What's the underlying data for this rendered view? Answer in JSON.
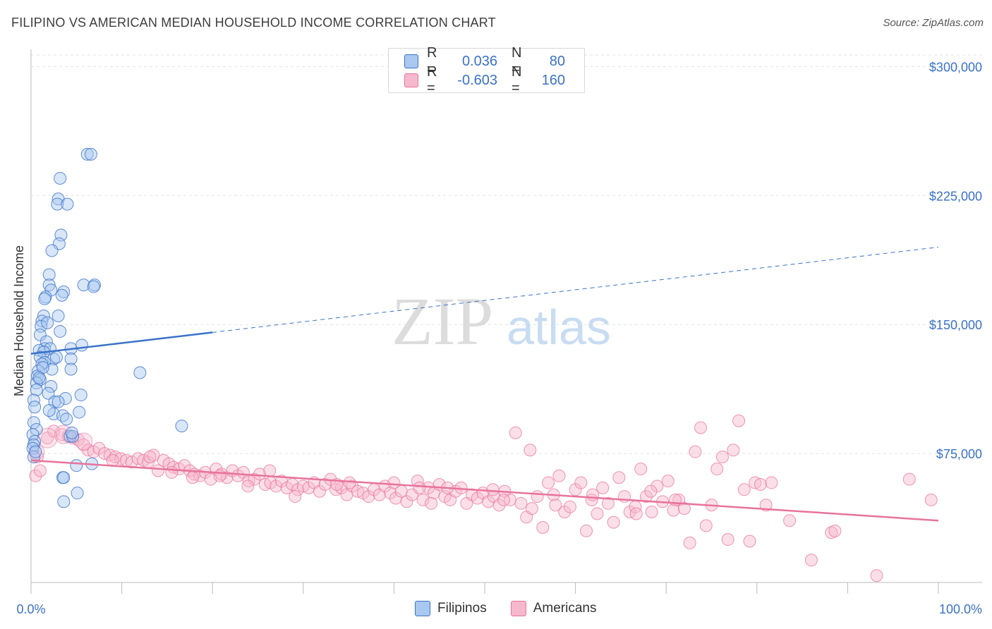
{
  "title": "FILIPINO VS AMERICAN MEDIAN HOUSEHOLD INCOME CORRELATION CHART",
  "source": "Source: ZipAtlas.com",
  "watermark": {
    "zip": "ZIP",
    "atlas": "atlas"
  },
  "legend": {
    "rows": [
      {
        "r_label": "R =",
        "r_value": "0.036",
        "n_label": "N =",
        "n_value": "80"
      },
      {
        "r_label": "R =",
        "r_value": "-0.603",
        "n_label": "N =",
        "n_value": "160"
      }
    ]
  },
  "chart_data": {
    "type": "scatter",
    "title": "FILIPINO VS AMERICAN MEDIAN HOUSEHOLD INCOME CORRELATION CHART",
    "ylabel": "Median Household Income",
    "xlim": [
      0,
      100
    ],
    "ylim": [
      0,
      310000
    ],
    "x_tick_labels": [
      "0.0%",
      "100.0%"
    ],
    "y_ticks": [
      75000,
      150000,
      225000,
      300000
    ],
    "y_tick_labels": [
      "$75,000",
      "$150,000",
      "$225,000",
      "$300,000"
    ],
    "grid": true,
    "legend_position": "top-center",
    "colors": {
      "filipinos": "#3a72c8",
      "americans": "#e8739c",
      "filipinos_fill": "#a9c8f0",
      "americans_fill": "#f6b8cc"
    },
    "series": [
      {
        "name": "Filipinos",
        "trend": {
          "x0": 0,
          "y0": 133000,
          "x1": 100,
          "y1": 195000,
          "solid_until_x": 20
        },
        "points": [
          [
            6.2,
            249000
          ],
          [
            6.6,
            249000
          ],
          [
            3.2,
            235000
          ],
          [
            3.0,
            223000
          ],
          [
            2.9,
            220000
          ],
          [
            4.0,
            220000
          ],
          [
            3.3,
            202000
          ],
          [
            3.1,
            197000
          ],
          [
            2.3,
            193000
          ],
          [
            2.0,
            179000
          ],
          [
            5.8,
            173000
          ],
          [
            7.0,
            173000
          ],
          [
            6.9,
            172000
          ],
          [
            2.0,
            173000
          ],
          [
            2.2,
            170000
          ],
          [
            3.6,
            169000
          ],
          [
            3.4,
            167000
          ],
          [
            1.6,
            166000
          ],
          [
            1.5,
            165000
          ],
          [
            1.4,
            155000
          ],
          [
            3.0,
            155000
          ],
          [
            1.2,
            152000
          ],
          [
            1.1,
            149000
          ],
          [
            1.8,
            151000
          ],
          [
            3.2,
            146000
          ],
          [
            1.0,
            144000
          ],
          [
            1.7,
            140000
          ],
          [
            5.6,
            138000
          ],
          [
            1.5,
            136000
          ],
          [
            2.1,
            136000
          ],
          [
            4.4,
            136000
          ],
          [
            0.9,
            135000
          ],
          [
            1.4,
            134000
          ],
          [
            1.0,
            131000
          ],
          [
            2.5,
            130000
          ],
          [
            4.4,
            130000
          ],
          [
            1.5,
            128000
          ],
          [
            1.2,
            127000
          ],
          [
            0.8,
            123000
          ],
          [
            2.3,
            124000
          ],
          [
            4.4,
            124000
          ],
          [
            12.0,
            122000
          ],
          [
            0.7,
            120000
          ],
          [
            1.0,
            118000
          ],
          [
            0.6,
            116000
          ],
          [
            2.2,
            114000
          ],
          [
            0.6,
            112000
          ],
          [
            1.9,
            110000
          ],
          [
            5.5,
            109000
          ],
          [
            3.8,
            107000
          ],
          [
            0.3,
            106000
          ],
          [
            2.6,
            105000
          ],
          [
            3.0,
            105000
          ],
          [
            0.4,
            102000
          ],
          [
            5.3,
            99000
          ],
          [
            2.5,
            98000
          ],
          [
            3.5,
            97000
          ],
          [
            3.9,
            95000
          ],
          [
            0.3,
            93000
          ],
          [
            16.6,
            91000
          ],
          [
            0.6,
            89000
          ],
          [
            0.2,
            86000
          ],
          [
            4.3,
            85000
          ],
          [
            4.6,
            85000
          ],
          [
            0.4,
            82000
          ],
          [
            0.3,
            80000
          ],
          [
            0.2,
            78000
          ],
          [
            0.3,
            73000
          ],
          [
            6.7,
            69000
          ],
          [
            5.0,
            68000
          ],
          [
            3.5,
            61000
          ],
          [
            3.6,
            61000
          ],
          [
            5.1,
            52000
          ],
          [
            3.6,
            47000
          ],
          [
            0.5,
            76000
          ],
          [
            1.3,
            125000
          ],
          [
            2.8,
            131000
          ],
          [
            0.9,
            119000
          ],
          [
            4.5,
            87000
          ],
          [
            2.0,
            100000
          ]
        ]
      },
      {
        "name": "Americans",
        "trend": {
          "x0": 0,
          "y0": 71000,
          "x1": 100,
          "y1": 36000
        },
        "points": [
          [
            0.5,
            62000
          ],
          [
            1.0,
            65000
          ],
          [
            0.7,
            73000
          ],
          [
            1.8,
            84000
          ],
          [
            2.5,
            88000
          ],
          [
            3.4,
            86000
          ],
          [
            4.1,
            85000
          ],
          [
            4.6,
            84000
          ],
          [
            5.2,
            83000
          ],
          [
            5.8,
            80000
          ],
          [
            6.3,
            77000
          ],
          [
            6.9,
            76000
          ],
          [
            7.5,
            78000
          ],
          [
            8.1,
            75000
          ],
          [
            8.7,
            74000
          ],
          [
            9.3,
            73000
          ],
          [
            9.9,
            72000
          ],
          [
            10.5,
            71000
          ],
          [
            11.1,
            70000
          ],
          [
            11.8,
            72000
          ],
          [
            12.4,
            71000
          ],
          [
            12.9,
            70000
          ],
          [
            13.5,
            74000
          ],
          [
            14.0,
            65000
          ],
          [
            14.6,
            71000
          ],
          [
            15.2,
            69000
          ],
          [
            15.7,
            67000
          ],
          [
            16.3,
            66000
          ],
          [
            16.9,
            68000
          ],
          [
            17.5,
            65000
          ],
          [
            18.0,
            63000
          ],
          [
            18.6,
            62000
          ],
          [
            19.2,
            64000
          ],
          [
            19.8,
            60000
          ],
          [
            20.4,
            66000
          ],
          [
            21.0,
            63000
          ],
          [
            21.6,
            61000
          ],
          [
            22.2,
            65000
          ],
          [
            22.8,
            62000
          ],
          [
            23.4,
            64000
          ],
          [
            24.0,
            59000
          ],
          [
            24.6,
            60000
          ],
          [
            25.2,
            63000
          ],
          [
            25.8,
            57000
          ],
          [
            26.4,
            58000
          ],
          [
            27.0,
            56000
          ],
          [
            27.6,
            59000
          ],
          [
            28.2,
            55000
          ],
          [
            28.8,
            57000
          ],
          [
            29.4,
            54000
          ],
          [
            30.0,
            56000
          ],
          [
            30.6,
            55000
          ],
          [
            31.2,
            58000
          ],
          [
            31.8,
            53000
          ],
          [
            32.4,
            57000
          ],
          [
            33.0,
            60000
          ],
          [
            33.6,
            54000
          ],
          [
            34.2,
            55000
          ],
          [
            34.8,
            51000
          ],
          [
            35.4,
            56000
          ],
          [
            36.0,
            53000
          ],
          [
            36.6,
            52000
          ],
          [
            37.2,
            50000
          ],
          [
            37.8,
            54000
          ],
          [
            38.4,
            51000
          ],
          [
            39.0,
            56000
          ],
          [
            39.6,
            52000
          ],
          [
            40.2,
            49000
          ],
          [
            40.8,
            53000
          ],
          [
            41.4,
            47000
          ],
          [
            42.0,
            51000
          ],
          [
            42.6,
            59000
          ],
          [
            43.2,
            48000
          ],
          [
            43.8,
            55000
          ],
          [
            44.4,
            52000
          ],
          [
            45.0,
            57000
          ],
          [
            45.6,
            50000
          ],
          [
            46.2,
            48000
          ],
          [
            46.8,
            53000
          ],
          [
            47.4,
            55000
          ],
          [
            48.0,
            46000
          ],
          [
            48.6,
            51000
          ],
          [
            49.2,
            49000
          ],
          [
            49.8,
            52000
          ],
          [
            50.4,
            47000
          ],
          [
            51.0,
            50000
          ],
          [
            51.6,
            45000
          ],
          [
            52.2,
            53000
          ],
          [
            52.8,
            48000
          ],
          [
            53.4,
            87000
          ],
          [
            54.0,
            46000
          ],
          [
            54.6,
            38000
          ],
          [
            55.2,
            43000
          ],
          [
            55.8,
            50000
          ],
          [
            56.4,
            32000
          ],
          [
            57.0,
            58000
          ],
          [
            57.6,
            51000
          ],
          [
            58.2,
            62000
          ],
          [
            58.8,
            41000
          ],
          [
            59.4,
            44000
          ],
          [
            60.0,
            54000
          ],
          [
            60.6,
            58000
          ],
          [
            61.2,
            30000
          ],
          [
            61.8,
            48000
          ],
          [
            62.4,
            40000
          ],
          [
            63.0,
            55000
          ],
          [
            63.6,
            46000
          ],
          [
            64.2,
            35000
          ],
          [
            64.8,
            61000
          ],
          [
            65.4,
            50000
          ],
          [
            66.0,
            41000
          ],
          [
            66.6,
            44000
          ],
          [
            67.2,
            66000
          ],
          [
            67.8,
            50000
          ],
          [
            68.4,
            41000
          ],
          [
            69.0,
            56000
          ],
          [
            69.6,
            47000
          ],
          [
            70.2,
            59000
          ],
          [
            70.8,
            42000
          ],
          [
            71.4,
            48000
          ],
          [
            72.0,
            43000
          ],
          [
            72.6,
            23000
          ],
          [
            73.2,
            76000
          ],
          [
            73.8,
            90000
          ],
          [
            74.4,
            33000
          ],
          [
            75.0,
            45000
          ],
          [
            75.6,
            66000
          ],
          [
            76.2,
            73000
          ],
          [
            76.8,
            25000
          ],
          [
            77.4,
            77000
          ],
          [
            78.0,
            94000
          ],
          [
            78.6,
            54000
          ],
          [
            79.2,
            24000
          ],
          [
            79.8,
            58000
          ],
          [
            80.4,
            57000
          ],
          [
            81.0,
            45000
          ],
          [
            81.6,
            58000
          ],
          [
            83.6,
            36000
          ],
          [
            86.0,
            13000
          ],
          [
            88.2,
            29000
          ],
          [
            88.6,
            30000
          ],
          [
            93.2,
            4000
          ],
          [
            96.8,
            60000
          ],
          [
            99.2,
            48000
          ],
          [
            13.1,
            73000
          ],
          [
            26.3,
            65000
          ],
          [
            35.1,
            58000
          ],
          [
            44.1,
            46000
          ],
          [
            50.9,
            54000
          ],
          [
            52.1,
            48000
          ],
          [
            42.8,
            55000
          ],
          [
            45.9,
            55000
          ],
          [
            33.7,
            57000
          ],
          [
            23.9,
            56000
          ],
          [
            17.8,
            61000
          ],
          [
            55.0,
            77000
          ],
          [
            61.9,
            51000
          ],
          [
            68.3,
            53000
          ],
          [
            71.0,
            48000
          ],
          [
            66.7,
            40000
          ],
          [
            57.8,
            45000
          ],
          [
            40.0,
            58000
          ],
          [
            29.1,
            50000
          ],
          [
            20.8,
            62000
          ],
          [
            9.0,
            71000
          ],
          [
            15.5,
            64000
          ]
        ]
      }
    ]
  },
  "bottom_legend": [
    {
      "label": "Filipinos"
    },
    {
      "label": "Americans"
    }
  ]
}
